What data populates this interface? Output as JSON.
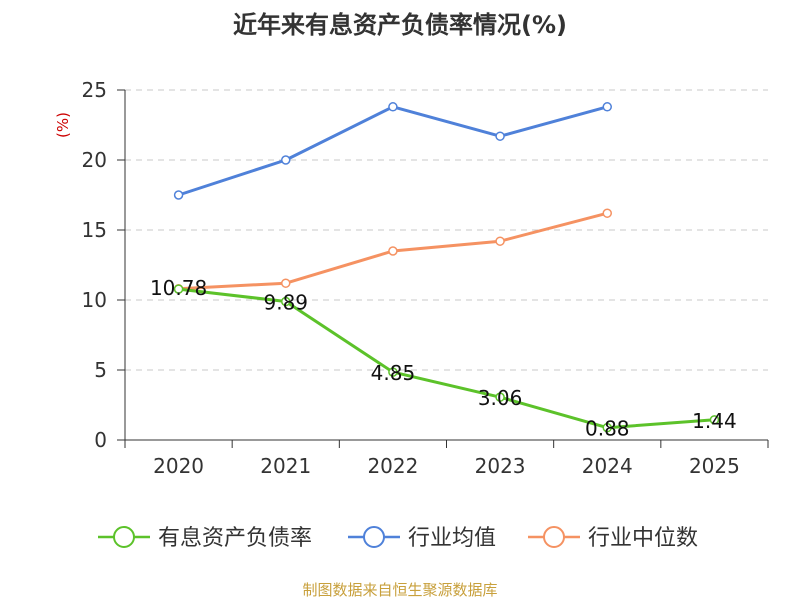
{
  "chart_data": {
    "type": "line",
    "title": "近年来有息资产负债率情况(%)",
    "ylabel": "(%)",
    "xlabel": "",
    "categories": [
      "2020",
      "2021",
      "2022",
      "2023",
      "2024",
      "2025"
    ],
    "yticks": [
      "0",
      "5",
      "10",
      "15",
      "20",
      "25"
    ],
    "ylim": [
      0,
      25
    ],
    "grid": true,
    "legend_position": "bottom",
    "series": [
      {
        "name": "有息资产负债率",
        "color": "#5cc22a",
        "values": [
          10.78,
          9.89,
          4.85,
          3.06,
          0.88,
          1.44
        ],
        "labels": [
          "10.78",
          "9.89",
          "4.85",
          "3.06",
          "0.88",
          "1.44"
        ]
      },
      {
        "name": "行业均值",
        "color": "#4f81d9",
        "values": [
          17.5,
          20.0,
          23.8,
          21.7,
          23.8,
          null
        ]
      },
      {
        "name": "行业中位数",
        "color": "#f59262",
        "values": [
          10.8,
          11.2,
          13.5,
          14.2,
          16.2,
          null
        ]
      }
    ],
    "source": "制图数据来自恒生聚源数据库"
  }
}
